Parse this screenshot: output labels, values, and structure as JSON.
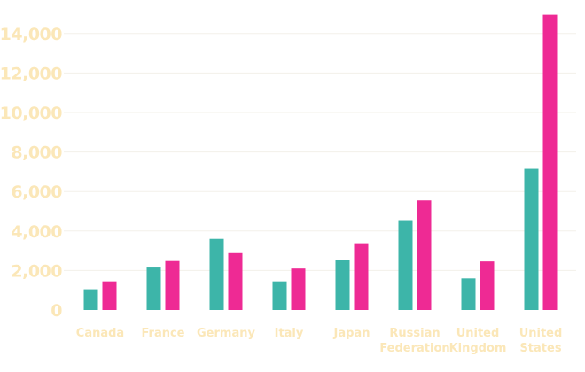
{
  "chart_data": {
    "type": "bar",
    "title": "",
    "xlabel": "",
    "ylabel": "",
    "categories": [
      [
        "Canada"
      ],
      [
        "France"
      ],
      [
        "Germany"
      ],
      [
        "Italy"
      ],
      [
        "Japan"
      ],
      [
        "Russian",
        "Federation"
      ],
      [
        "United",
        "Kingdom"
      ],
      [
        "United",
        "States"
      ]
    ],
    "series": [
      {
        "color": "#3db5a9",
        "values": [
          1050,
          2150,
          3600,
          1450,
          2550,
          4550,
          1600,
          7150
        ]
      },
      {
        "color": "#ee2a94",
        "values": [
          1450,
          2480,
          2880,
          2100,
          3380,
          5550,
          2460,
          14950
        ]
      }
    ],
    "ylim": [
      0,
      14000
    ],
    "yticks": [
      0,
      2000,
      4000,
      6000,
      8000,
      10000,
      12000,
      14000
    ],
    "ytick_labels": [
      "0",
      "2,000",
      "4,000",
      "6,000",
      "8,000",
      "10,000",
      "12,000",
      "14,000"
    ],
    "grid": true,
    "colors": {
      "tick_label": "#fbe7b8",
      "category_label": "#fbe7b8",
      "grid": "#f3f0ea"
    }
  }
}
